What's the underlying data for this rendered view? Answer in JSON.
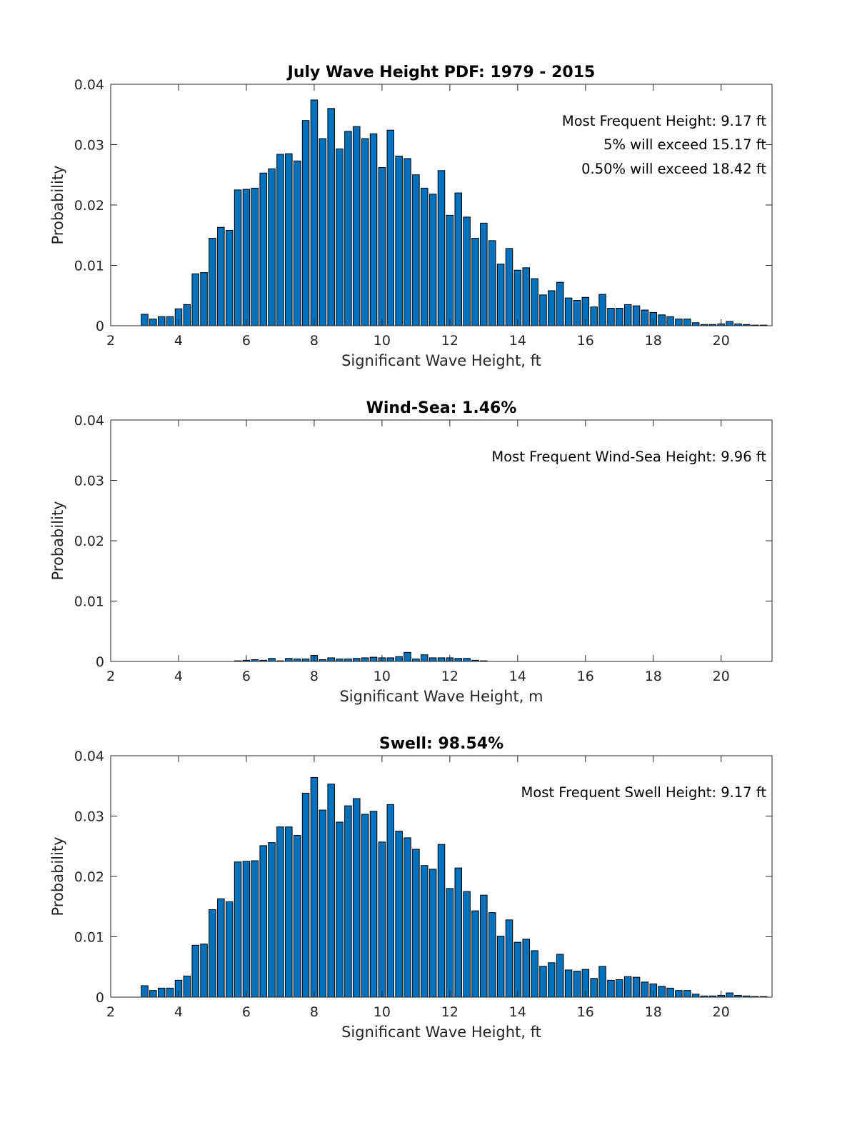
{
  "chart_data": [
    {
      "type": "bar",
      "title": "July Wave Height PDF: 1979 - 2015",
      "xlabel": "Significant Wave Height, ft",
      "ylabel": "Probability",
      "xlim": [
        2,
        21.5
      ],
      "ylim": [
        0,
        0.04
      ],
      "xticks": [
        "2",
        "4",
        "6",
        "8",
        "10",
        "12",
        "14",
        "16",
        "18",
        "20"
      ],
      "yticks": [
        "0",
        "0.01",
        "0.02",
        "0.03",
        "0.04"
      ],
      "bin_start": 3.0,
      "bin_width": 0.25,
      "values": [
        0.0019,
        0.0011,
        0.0015,
        0.0015,
        0.0028,
        0.0035,
        0.0086,
        0.0088,
        0.0145,
        0.0163,
        0.0158,
        0.0225,
        0.0226,
        0.0228,
        0.0253,
        0.026,
        0.0284,
        0.0285,
        0.0273,
        0.034,
        0.0374,
        0.031,
        0.036,
        0.0293,
        0.0322,
        0.033,
        0.031,
        0.0318,
        0.0262,
        0.0324,
        0.0281,
        0.0277,
        0.025,
        0.0228,
        0.0218,
        0.0257,
        0.0183,
        0.022,
        0.018,
        0.0145,
        0.017,
        0.0141,
        0.0102,
        0.0128,
        0.0092,
        0.0096,
        0.0078,
        0.0051,
        0.0058,
        0.0072,
        0.0046,
        0.0042,
        0.0047,
        0.0031,
        0.0052,
        0.0029,
        0.0029,
        0.0035,
        0.0033,
        0.0026,
        0.0022,
        0.0018,
        0.0015,
        0.0011,
        0.0011,
        0.0005,
        0.0002,
        0.0002,
        0.0003,
        0.0007,
        0.0003,
        0.0002,
        0.0001,
        0.0001
      ],
      "annotations": [
        "Most Frequent Height: 9.17 ft",
        "5% will exceed 15.17 ft",
        "0.50% will exceed 18.42 ft"
      ],
      "grid": false
    },
    {
      "type": "bar",
      "title": "Wind-Sea: 1.46%",
      "xlabel": "Significant Wave Height, m",
      "ylabel": "Probability",
      "xlim": [
        2,
        21.5
      ],
      "ylim": [
        0,
        0.04
      ],
      "xticks": [
        "2",
        "4",
        "6",
        "8",
        "10",
        "12",
        "14",
        "16",
        "18",
        "20"
      ],
      "yticks": [
        "0",
        "0.01",
        "0.02",
        "0.03",
        "0.04"
      ],
      "bin_start": 3.0,
      "bin_width": 0.25,
      "values": [
        0,
        0,
        0,
        0,
        0,
        0,
        0,
        0,
        0,
        0,
        0,
        0.0001,
        0.0002,
        0.0003,
        0.0002,
        0.0005,
        0.0001,
        0.0005,
        0.0004,
        0.0004,
        0.001,
        0.0003,
        0.0006,
        0.0004,
        0.0004,
        0.0005,
        0.0006,
        0.0007,
        0.0006,
        0.0006,
        0.0008,
        0.0015,
        0.0004,
        0.0011,
        0.0006,
        0.0006,
        0.0006,
        0.0005,
        0.0005,
        0.0002,
        0.0001,
        0,
        0,
        0,
        0,
        0,
        0,
        0,
        0,
        0,
        0,
        0,
        0,
        0,
        0,
        0,
        0,
        0,
        0,
        0,
        0,
        0,
        0,
        0,
        0,
        0,
        0,
        0,
        0,
        0,
        0,
        0,
        0,
        0
      ],
      "annotations": [
        "Most Frequent Wind-Sea Height: 9.96 ft"
      ],
      "grid": false
    },
    {
      "type": "bar",
      "title": "Swell: 98.54%",
      "xlabel": "Significant Wave Height, ft",
      "ylabel": "Probability",
      "xlim": [
        2,
        21.5
      ],
      "ylim": [
        0,
        0.04
      ],
      "xticks": [
        "2",
        "4",
        "6",
        "8",
        "10",
        "12",
        "14",
        "16",
        "18",
        "20"
      ],
      "yticks": [
        "0",
        "0.01",
        "0.02",
        "0.03",
        "0.04"
      ],
      "bin_start": 3.0,
      "bin_width": 0.25,
      "values": [
        0.0019,
        0.0011,
        0.0015,
        0.0015,
        0.0028,
        0.0035,
        0.0086,
        0.0088,
        0.0145,
        0.0163,
        0.0158,
        0.0224,
        0.0225,
        0.0226,
        0.0251,
        0.0256,
        0.0282,
        0.0282,
        0.0268,
        0.0338,
        0.0364,
        0.031,
        0.0353,
        0.029,
        0.0317,
        0.0329,
        0.0303,
        0.0308,
        0.0257,
        0.0319,
        0.0275,
        0.0264,
        0.0245,
        0.0218,
        0.0212,
        0.0253,
        0.018,
        0.0214,
        0.0175,
        0.0143,
        0.0169,
        0.014,
        0.0101,
        0.0128,
        0.0091,
        0.0096,
        0.0077,
        0.0051,
        0.0057,
        0.0071,
        0.0045,
        0.0043,
        0.0046,
        0.0031,
        0.0051,
        0.0028,
        0.0029,
        0.0034,
        0.0033,
        0.0025,
        0.0022,
        0.0018,
        0.0015,
        0.0011,
        0.0011,
        0.0005,
        0.0002,
        0.0002,
        0.0003,
        0.0007,
        0.0003,
        0.0002,
        0.0001,
        0.0001
      ],
      "annotations": [
        "Most Frequent Swell Height: 9.17 ft"
      ],
      "grid": false
    }
  ]
}
